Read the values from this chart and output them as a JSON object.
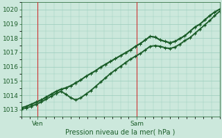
{
  "title": "Pression niveau de la mer( hPa )",
  "ylim": [
    1012.5,
    1020.5
  ],
  "yticks": [
    1013,
    1014,
    1015,
    1016,
    1017,
    1018,
    1019,
    1020
  ],
  "xlim": [
    0,
    48
  ],
  "xtick_positions": [
    4,
    28
  ],
  "xtick_labels": [
    "Ven",
    "Sam"
  ],
  "vline_x": [
    4,
    28
  ],
  "vline_color": "#cc3333",
  "bg_color": "#cce8dc",
  "grid_color": "#99ccbb",
  "line_color": "#1a5c28",
  "marker": "+",
  "markersize": 3,
  "linewidth": 0.8,
  "series": [
    [
      1013.1,
      1013.2,
      1013.35,
      1013.5,
      1013.65,
      1013.85,
      1014.05,
      1014.25,
      1014.4,
      1014.5,
      1014.65,
      1014.85,
      1015.05,
      1015.3,
      1015.5,
      1015.7,
      1015.95,
      1016.15,
      1016.35,
      1016.55,
      1016.75,
      1016.95,
      1017.15,
      1017.4,
      1017.6,
      1017.85,
      1018.1,
      1018.05,
      1017.85,
      1017.75,
      1017.65,
      1017.75,
      1017.95,
      1018.15,
      1018.45,
      1018.75,
      1018.95,
      1019.25,
      1019.55,
      1019.8,
      1020.0
    ],
    [
      1013.0,
      1013.1,
      1013.25,
      1013.4,
      1013.55,
      1013.75,
      1013.95,
      1014.15,
      1014.3,
      1014.1,
      1013.85,
      1013.7,
      1013.85,
      1014.1,
      1014.35,
      1014.65,
      1014.95,
      1015.25,
      1015.55,
      1015.8,
      1016.05,
      1016.3,
      1016.55,
      1016.75,
      1016.95,
      1017.2,
      1017.45,
      1017.5,
      1017.45,
      1017.35,
      1017.3,
      1017.4,
      1017.6,
      1017.85,
      1018.05,
      1018.35,
      1018.65,
      1018.95,
      1019.25,
      1019.6,
      1019.9
    ],
    [
      1013.05,
      1013.1,
      1013.2,
      1013.35,
      1013.5,
      1013.7,
      1013.9,
      1014.1,
      1014.25,
      1014.05,
      1013.8,
      1013.65,
      1013.8,
      1014.05,
      1014.3,
      1014.6,
      1014.9,
      1015.2,
      1015.5,
      1015.75,
      1016.0,
      1016.25,
      1016.5,
      1016.7,
      1016.9,
      1017.15,
      1017.4,
      1017.45,
      1017.4,
      1017.3,
      1017.25,
      1017.35,
      1017.55,
      1017.8,
      1018.0,
      1018.3,
      1018.6,
      1018.9,
      1019.2,
      1019.55,
      1019.85
    ],
    [
      1013.15,
      1013.25,
      1013.4,
      1013.55,
      1013.7,
      1013.9,
      1014.1,
      1014.3,
      1014.45,
      1014.55,
      1014.7,
      1014.9,
      1015.1,
      1015.35,
      1015.55,
      1015.75,
      1016.0,
      1016.2,
      1016.4,
      1016.6,
      1016.8,
      1017.0,
      1017.2,
      1017.45,
      1017.65,
      1017.9,
      1018.15,
      1018.1,
      1017.9,
      1017.8,
      1017.7,
      1017.8,
      1018.0,
      1018.2,
      1018.5,
      1018.8,
      1019.0,
      1019.3,
      1019.6,
      1019.85,
      1020.05
    ],
    [
      1013.1,
      1013.2,
      1013.35,
      1013.5,
      1013.65,
      1013.85,
      1014.05,
      1014.25,
      1014.4,
      1014.5,
      1014.65,
      1014.85,
      1015.05,
      1015.3,
      1015.5,
      1015.7,
      1015.95,
      1016.15,
      1016.35,
      1016.55,
      1016.75,
      1016.95,
      1017.15,
      1017.4,
      1017.6,
      1017.85,
      1018.1,
      1018.05,
      1017.85,
      1017.75,
      1017.65,
      1017.75,
      1017.95,
      1018.15,
      1018.45,
      1018.75,
      1018.95,
      1019.25,
      1019.55,
      1019.8,
      1020.0
    ]
  ]
}
